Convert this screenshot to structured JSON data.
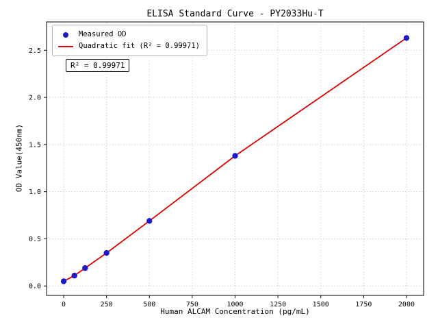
{
  "colors": {
    "measured": "#1a1ac8",
    "fit": "#dd0000",
    "grid": "#c9c9c9"
  },
  "legend": {
    "measured": "Measured OD",
    "fit": "Quadratic fit (R² = 0.99971)"
  },
  "annotation_label": "R² = 0.99971",
  "chart_data": {
    "type": "scatter",
    "title": "ELISA Standard Curve - PY2033Hu-T",
    "xlabel": "Human ALCAM Concentration (pg/mL)",
    "ylabel": "OD Value(450nm)",
    "xlim": [
      -100,
      2100
    ],
    "ylim": [
      -0.1,
      2.8
    ],
    "grid": true,
    "legend_position": "upper-left",
    "x_ticks": [
      0,
      250,
      500,
      750,
      1000,
      1250,
      1500,
      1750,
      2000
    ],
    "x_tick_labels": [
      "0",
      "250",
      "500",
      "750",
      "1000",
      "1250",
      "1500",
      "1750",
      "2000"
    ],
    "y_ticks": [
      0.0,
      0.5,
      1.0,
      1.5,
      2.0,
      2.5
    ],
    "y_tick_labels": [
      "0.0",
      "0.5",
      "1.0",
      "1.5",
      "2.0",
      "2.5"
    ],
    "series": [
      {
        "name": "Quadratic fit (R² = 0.99971)",
        "type": "line",
        "color": "#dd0000",
        "x": [
          0,
          62.5,
          125,
          250,
          500,
          1000,
          2000
        ],
        "y": [
          0.05,
          0.11,
          0.19,
          0.35,
          0.69,
          1.38,
          2.63
        ]
      },
      {
        "name": "Measured OD",
        "type": "scatter",
        "color": "#1a1ac8",
        "x": [
          0,
          62.5,
          125,
          250,
          500,
          1000,
          2000
        ],
        "y": [
          0.05,
          0.11,
          0.19,
          0.35,
          0.69,
          1.38,
          2.63
        ]
      }
    ],
    "annotation": "R² = 0.99971",
    "r_squared": 0.99971
  }
}
